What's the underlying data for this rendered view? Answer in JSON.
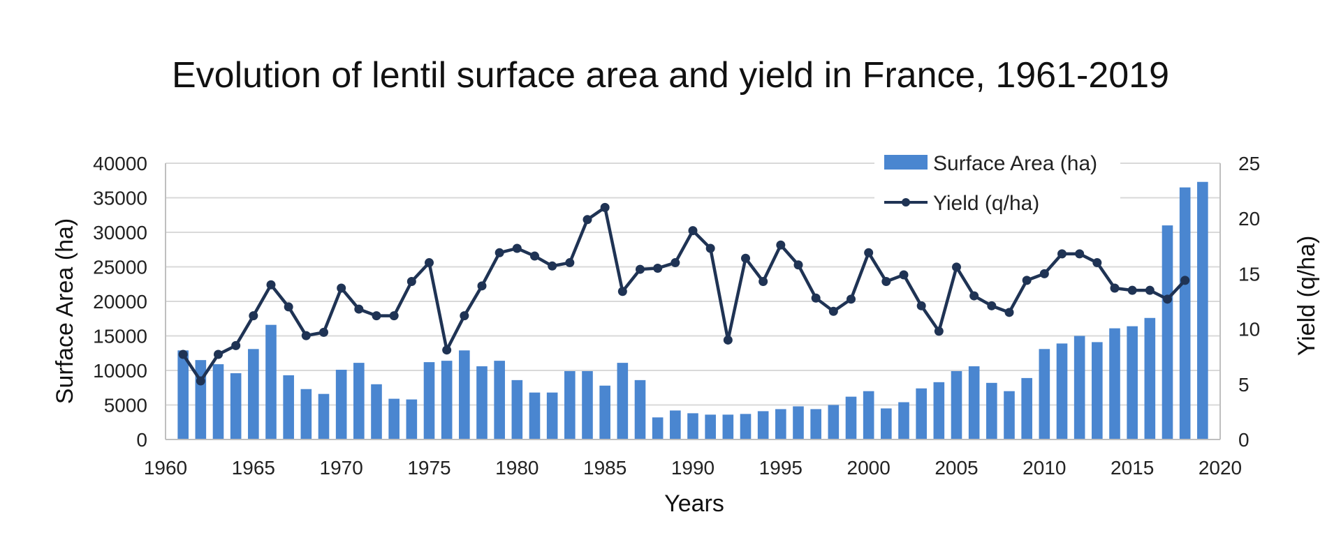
{
  "chart_data": {
    "type": "bar",
    "title": "Evolution of lentil surface area and yield in France, 1961-2019",
    "xlabel": "Years",
    "ylabel": "Surface Area (ha)",
    "y2label": "Yield (q/ha)",
    "xlim": [
      1960,
      2020
    ],
    "ylim": [
      0,
      40000
    ],
    "y2lim": [
      0,
      25
    ],
    "xticks": [
      "1960",
      "1965",
      "1970",
      "1975",
      "1980",
      "1985",
      "1990",
      "1995",
      "2000",
      "2005",
      "2010",
      "2015",
      "2020"
    ],
    "yticks": [
      "0",
      "5000",
      "10000",
      "15000",
      "20000",
      "25000",
      "30000",
      "35000",
      "40000"
    ],
    "y2ticks": [
      "0",
      "5",
      "10",
      "15",
      "20",
      "25"
    ],
    "grid": true,
    "legend_position": "top-right",
    "colors": {
      "bars": "#4a86d0",
      "line": "#1f3354",
      "grid": "#d9d9d9"
    },
    "series": [
      {
        "name": "Surface Area (ha)",
        "type": "bar",
        "axis": "left",
        "x": [
          1961,
          1962,
          1963,
          1964,
          1965,
          1966,
          1967,
          1968,
          1969,
          1970,
          1971,
          1972,
          1973,
          1974,
          1975,
          1976,
          1977,
          1978,
          1979,
          1980,
          1981,
          1982,
          1983,
          1984,
          1985,
          1986,
          1987,
          1988,
          1989,
          1990,
          1991,
          1992,
          1993,
          1994,
          1995,
          1996,
          1997,
          1998,
          1999,
          2000,
          2001,
          2002,
          2003,
          2004,
          2005,
          2006,
          2007,
          2008,
          2009,
          2010,
          2011,
          2012,
          2013,
          2014,
          2015,
          2016,
          2017,
          2018,
          2019
        ],
        "values": [
          12900,
          11500,
          10900,
          9600,
          13100,
          16600,
          9300,
          7300,
          6600,
          10100,
          11100,
          8000,
          5900,
          5800,
          11200,
          11400,
          12900,
          10600,
          11400,
          8600,
          6800,
          6800,
          9900,
          9900,
          7800,
          11100,
          8600,
          3200,
          4200,
          3800,
          3600,
          3600,
          3700,
          4100,
          4400,
          4800,
          4400,
          5000,
          6200,
          7000,
          4500,
          5400,
          7400,
          8300,
          9900,
          10600,
          8200,
          7000,
          8900,
          13100,
          13900,
          15000,
          14100,
          16100,
          16400,
          17600,
          31000,
          36500,
          37300
        ]
      },
      {
        "name": "Yield (q/ha)",
        "type": "line",
        "axis": "right",
        "x": [
          1961,
          1962,
          1963,
          1964,
          1965,
          1966,
          1967,
          1968,
          1969,
          1970,
          1971,
          1972,
          1973,
          1974,
          1975,
          1976,
          1977,
          1978,
          1979,
          1980,
          1981,
          1982,
          1983,
          1984,
          1985,
          1986,
          1987,
          1988,
          1989,
          1990,
          1991,
          1992,
          1993,
          1994,
          1995,
          1996,
          1997,
          1998,
          1999,
          2000,
          2001,
          2002,
          2003,
          2004,
          2005,
          2006,
          2007,
          2008,
          2009,
          2010,
          2011,
          2012,
          2013,
          2014,
          2015,
          2016,
          2017,
          2018
        ],
        "values": [
          7.7,
          5.3,
          7.7,
          8.5,
          11.2,
          14.0,
          12.0,
          9.4,
          9.7,
          13.7,
          11.8,
          11.2,
          11.2,
          14.3,
          16.0,
          8.1,
          11.2,
          13.9,
          16.9,
          17.3,
          16.6,
          15.7,
          16.0,
          19.9,
          21.0,
          13.4,
          15.4,
          15.5,
          16.0,
          18.9,
          17.3,
          9.0,
          16.4,
          14.3,
          17.6,
          15.8,
          12.8,
          11.6,
          12.7,
          16.9,
          14.3,
          14.9,
          12.1,
          9.8,
          15.6,
          13.0,
          12.1,
          11.5,
          14.4,
          15.0,
          16.8,
          16.8,
          16.0,
          13.7,
          13.5,
          13.5,
          12.7,
          14.4
        ]
      }
    ]
  }
}
